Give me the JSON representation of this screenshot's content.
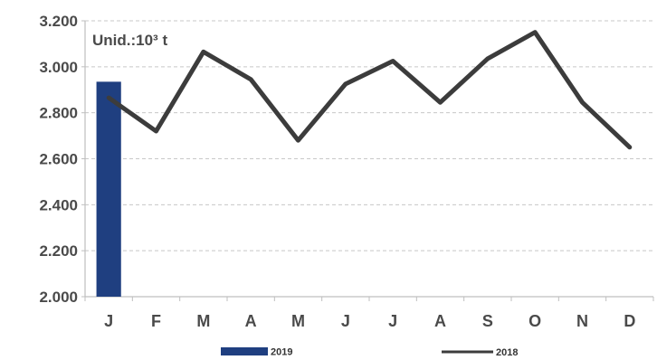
{
  "chart_data": {
    "type": "bar+line",
    "unit_label": "Unid.:10³ t",
    "categories": [
      "J",
      "F",
      "M",
      "A",
      "M",
      "J",
      "J",
      "A",
      "S",
      "O",
      "N",
      "D"
    ],
    "y_ticks": [
      "3.200",
      "3.000",
      "2.800",
      "2.600",
      "2.400",
      "2.200",
      "2.000"
    ],
    "y_tick_values": [
      3200,
      3000,
      2800,
      2600,
      2400,
      2200,
      2000
    ],
    "ylim": [
      2000,
      3200
    ],
    "grid": true,
    "legend_position": "bottom",
    "series": [
      {
        "name": "2019",
        "type": "bar",
        "color": "#1f3f80",
        "values": [
          2935,
          null,
          null,
          null,
          null,
          null,
          null,
          null,
          null,
          null,
          null,
          null
        ]
      },
      {
        "name": "2018",
        "type": "line",
        "color": "#3c3c3c",
        "values": [
          2865,
          2720,
          3065,
          2945,
          2680,
          2925,
          3025,
          2845,
          3035,
          3150,
          2845,
          2650
        ]
      }
    ]
  }
}
